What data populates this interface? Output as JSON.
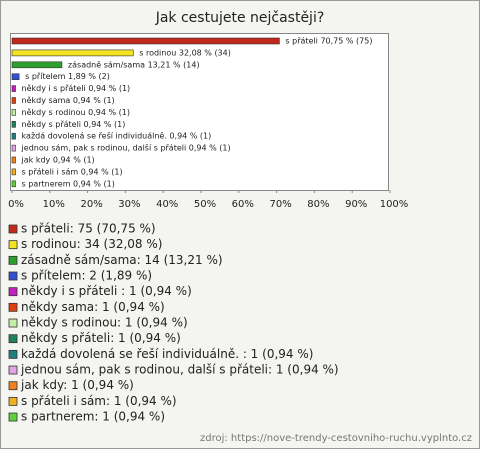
{
  "chart_data": {
    "type": "bar",
    "orientation": "horizontal",
    "title": "Jak cestujete nejčastěji?",
    "values": [
      70.75,
      32.08,
      13.21,
      1.89,
      0.94,
      0.94,
      0.94,
      0.94,
      0.94,
      0.94,
      0.94,
      0.94,
      0.94
    ],
    "value_labels": [
      "s přáteli 70,75 % (75)",
      "s rodinou 32,08 % (34)",
      "zásadně sám/sama 13,21 % (14)",
      "s přítelem 1,89 % (2)",
      "někdy i s přáteli  0,94 % (1)",
      "někdy sama 0,94 % (1)",
      "někdy s rodinou 0,94 % (1)",
      "někdy s přáteli 0,94 % (1)",
      "každá dovolená se řeší individuálně.  0,94 % (1)",
      "jednou sám, pak s rodinou, další s přáteli 0,94 % (1)",
      "jak kdy 0,94 % (1)",
      "s přáteli i sám 0,94 % (1)",
      "s partnerem 0,94 % (1)"
    ],
    "legend_labels": [
      "s přáteli: 75 (70,75 %)",
      "s rodinou: 34 (32,08 %)",
      "zásadně sám/sama: 14 (13,21 %)",
      "s přítelem: 2 (1,89 %)",
      "někdy i s přáteli : 1 (0,94 %)",
      "někdy sama: 1 (0,94 %)",
      "někdy s rodinou: 1 (0,94 %)",
      "někdy s přáteli: 1 (0,94 %)",
      "každá dovolená se řeší individuálně. : 1 (0,94 %)",
      "jednou sám, pak s rodinou, další s přáteli: 1 (0,94 %)",
      "jak kdy: 1 (0,94 %)",
      "s přáteli i sám: 1 (0,94 %)",
      "s partnerem: 1 (0,94 %)"
    ],
    "colors": [
      "#c0291c",
      "#f2e424",
      "#2ca02c",
      "#3050d0",
      "#c020c0",
      "#e04010",
      "#c4f0a4",
      "#208060",
      "#208080",
      "#e4a4e4",
      "#f08020",
      "#f0b020",
      "#60d040"
    ],
    "xlim": [
      0,
      100
    ],
    "xticks": [
      {
        "value": 0,
        "label": "0%"
      },
      {
        "value": 10,
        "label": "10%"
      },
      {
        "value": 20,
        "label": "20%"
      },
      {
        "value": 30,
        "label": "30%"
      },
      {
        "value": 40,
        "label": "40%"
      },
      {
        "value": 50,
        "label": "50%"
      },
      {
        "value": 60,
        "label": "60%"
      },
      {
        "value": 70,
        "label": "70%"
      },
      {
        "value": 80,
        "label": "80%"
      },
      {
        "value": 90,
        "label": "90%"
      },
      {
        "value": 100,
        "label": "100%"
      }
    ],
    "source": "zdroj: https://nove-trendy-cestovniho-ruchu.vyplnto.cz"
  }
}
